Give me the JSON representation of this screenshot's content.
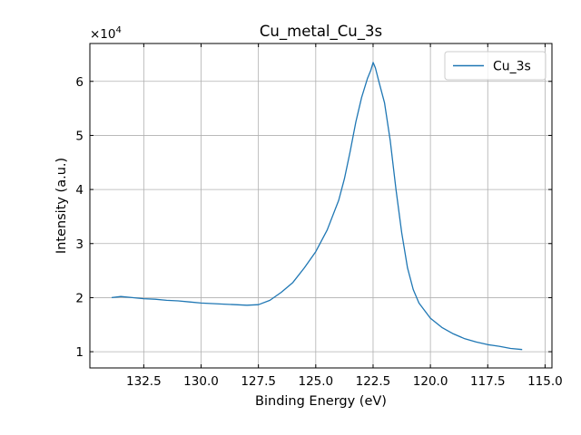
{
  "chart_data": {
    "type": "line",
    "title": "Cu_metal_Cu_3s",
    "xlabel": "Binding Energy (eV)",
    "ylabel": "Intensity (a.u.)",
    "y_offset_label": "×10",
    "y_offset_exponent": "4",
    "x_reversed": true,
    "xlim": [
      134.85,
      114.7
    ],
    "ylim": [
      0.7,
      6.7
    ],
    "grid": true,
    "legend_position": "top-right",
    "x_ticks": [
      132.5,
      130.0,
      127.5,
      125.0,
      122.5,
      120.0,
      117.5,
      115.0
    ],
    "x_tick_labels": [
      "132.5",
      "130.0",
      "127.5",
      "125.0",
      "122.5",
      "120.0",
      "117.5",
      "115.0"
    ],
    "y_ticks": [
      1,
      2,
      3,
      4,
      5,
      6
    ],
    "y_tick_labels": [
      "1",
      "2",
      "3",
      "4",
      "5",
      "6"
    ],
    "series": [
      {
        "name": "Cu_3s",
        "color": "#1f77b4",
        "x": [
          133.9,
          133.5,
          133.0,
          132.5,
          132.0,
          131.5,
          131.0,
          130.5,
          130.0,
          129.5,
          129.0,
          128.5,
          128.0,
          127.5,
          127.0,
          126.5,
          126.0,
          125.5,
          125.0,
          124.5,
          124.0,
          123.75,
          123.5,
          123.25,
          123.0,
          122.75,
          122.6,
          122.5,
          122.4,
          122.25,
          122.0,
          121.75,
          121.5,
          121.25,
          121.0,
          120.75,
          120.5,
          120.0,
          119.5,
          119.0,
          118.5,
          118.0,
          117.5,
          117.0,
          116.5,
          116.0
        ],
        "y": [
          2.0,
          2.02,
          2.0,
          1.98,
          1.97,
          1.95,
          1.94,
          1.92,
          1.9,
          1.89,
          1.88,
          1.87,
          1.86,
          1.87,
          1.95,
          2.1,
          2.28,
          2.55,
          2.85,
          3.25,
          3.8,
          4.2,
          4.7,
          5.25,
          5.7,
          6.05,
          6.2,
          6.35,
          6.25,
          6.0,
          5.6,
          4.9,
          4.0,
          3.2,
          2.55,
          2.15,
          1.9,
          1.62,
          1.45,
          1.33,
          1.24,
          1.18,
          1.13,
          1.1,
          1.06,
          1.04
        ]
      }
    ]
  }
}
